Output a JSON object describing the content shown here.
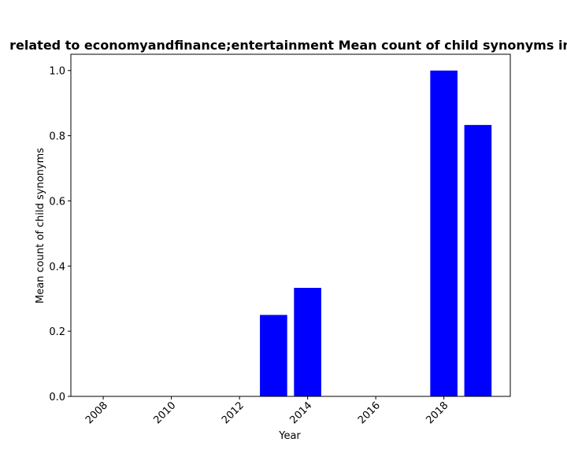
{
  "colors": {
    "bar": "#0000ff",
    "axis": "#000000",
    "background": "#ffffff"
  },
  "chart_data": {
    "type": "bar",
    "title": "related to economyandfinance;entertainment Mean count of child synonyms in",
    "xlabel": "Year",
    "ylabel": "Mean count of child synonyms",
    "x": [
      2013,
      2014,
      2018,
      2019
    ],
    "values": [
      0.25,
      0.333,
      1.0,
      0.833
    ],
    "bar_width": 0.8,
    "xlim": [
      2007.05,
      2019.95
    ],
    "ylim": [
      0,
      1.05
    ],
    "xticks": [
      2008,
      2010,
      2012,
      2014,
      2016,
      2018
    ],
    "yticks": [
      0.0,
      0.2,
      0.4,
      0.6,
      0.8,
      1.0
    ],
    "ytick_labels": [
      "0.0",
      "0.2",
      "0.4",
      "0.6",
      "0.8",
      "1.0"
    ],
    "xtick_rotation": 45,
    "grid": false,
    "legend": "none"
  }
}
